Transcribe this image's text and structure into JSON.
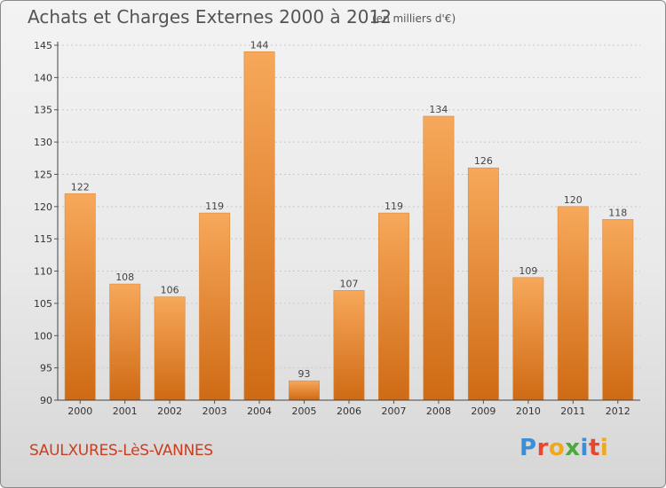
{
  "header": {
    "title": "Achats et Charges Externes 2000 à 2012",
    "unit": "(en milliers d'€)"
  },
  "footer": {
    "commune": "SAULXURES-LèS-VANNES",
    "logo_letters": [
      {
        "char": "P",
        "color": "#3a8fd6"
      },
      {
        "char": "r",
        "color": "#e8462e"
      },
      {
        "char": "o",
        "color": "#f2a81d"
      },
      {
        "char": "x",
        "color": "#4aab3c"
      },
      {
        "char": "i",
        "color": "#3a8fd6"
      },
      {
        "char": "t",
        "color": "#e8462e"
      },
      {
        "char": "i",
        "color": "#f2a81d"
      }
    ]
  },
  "chart_data": {
    "type": "bar",
    "title": "Achats et Charges Externes 2000 à 2012",
    "categories": [
      "2000",
      "2001",
      "2002",
      "2003",
      "2004",
      "2005",
      "2006",
      "2007",
      "2008",
      "2009",
      "2010",
      "2011",
      "2012"
    ],
    "values": [
      122,
      108,
      106,
      119,
      144,
      93,
      107,
      119,
      134,
      126,
      109,
      120,
      118
    ],
    "ylim": [
      90,
      145
    ],
    "yticks": [
      90,
      95,
      100,
      105,
      110,
      115,
      120,
      125,
      130,
      135,
      140,
      145
    ],
    "grid": true,
    "bar_color_top": "#f7a85a",
    "bar_color_bottom": "#cf6a14"
  }
}
